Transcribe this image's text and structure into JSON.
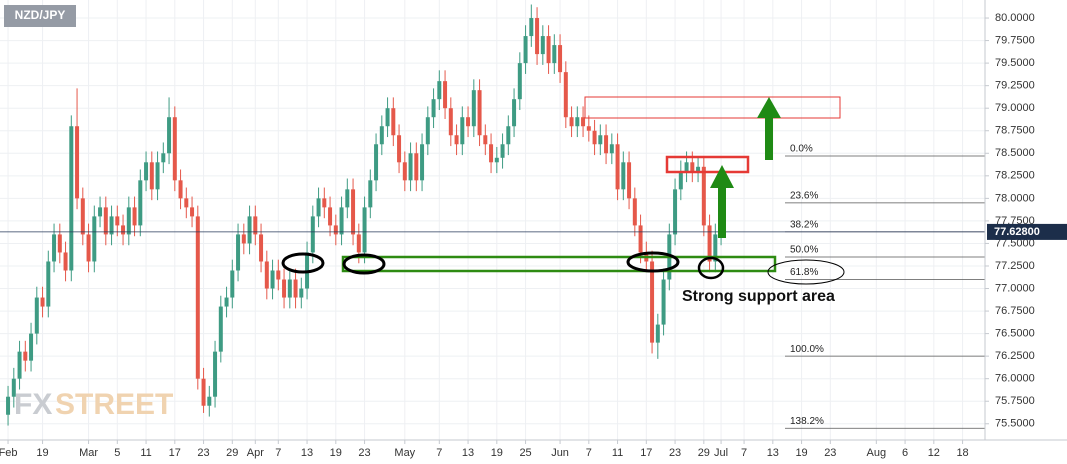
{
  "chart_data": {
    "type": "candlestick",
    "title": "NZD/JPY",
    "watermark": [
      "FX",
      "STREET"
    ],
    "up_color": "#3e9b83",
    "down_color": "#e5584a",
    "grid": true,
    "open": [
      75.6,
      75.8,
      76.0,
      76.3,
      76.2,
      76.5,
      76.9,
      76.8,
      77.3,
      77.6,
      77.4,
      77.2,
      78.8,
      78.0,
      77.6,
      77.3,
      77.8,
      77.9,
      77.6,
      77.8,
      77.7,
      77.6,
      77.9,
      77.7,
      78.2,
      78.4,
      78.1,
      78.4,
      78.5,
      78.9,
      78.2,
      78.0,
      77.9,
      77.8,
      76.0,
      75.7,
      75.8,
      76.3,
      76.8,
      76.9,
      77.2,
      77.6,
      77.5,
      77.8,
      77.6,
      77.3,
      77.0,
      77.2,
      77.1,
      76.9,
      77.1,
      76.9,
      77.0,
      77.4,
      77.8,
      78.0,
      77.9,
      77.7,
      77.6,
      77.9,
      78.1,
      77.6,
      77.4,
      77.9,
      78.2,
      78.6,
      78.8,
      79.0,
      78.7,
      78.4,
      78.2,
      78.5,
      78.2,
      78.6,
      78.9,
      79.1,
      79.3,
      79.0,
      78.7,
      78.6,
      78.9,
      78.8,
      79.2,
      78.7,
      78.6,
      78.4,
      78.45,
      78.6,
      78.8,
      79.1,
      79.5,
      79.8,
      80.0,
      79.6,
      79.8,
      79.5,
      79.7,
      79.4,
      78.9,
      78.8,
      78.9,
      78.8,
      78.75,
      78.6,
      78.7,
      78.5,
      78.6,
      78.1,
      78.4,
      78.0,
      77.7,
      77.4,
      77.3,
      76.4,
      76.6,
      77.1,
      77.6,
      78.1,
      78.3,
      78.4,
      78.3,
      78.35,
      77.7,
      77.3,
      77.6
    ],
    "high": [
      75.92,
      76.12,
      76.42,
      76.42,
      76.62,
      77.02,
      77.02,
      77.42,
      77.72,
      77.72,
      77.52,
      78.92,
      79.22,
      78.12,
      77.72,
      77.92,
      78.02,
      78.02,
      77.92,
      77.92,
      77.82,
      78.02,
      78.02,
      78.32,
      78.52,
      78.52,
      78.52,
      78.62,
      79.12,
      79.02,
      78.32,
      78.12,
      78.02,
      77.92,
      76.12,
      75.92,
      76.42,
      76.92,
      77.02,
      77.32,
      77.72,
      77.72,
      77.92,
      77.92,
      77.72,
      77.42,
      77.32,
      77.32,
      77.22,
      77.22,
      77.22,
      77.12,
      77.52,
      77.92,
      78.12,
      78.12,
      78.02,
      77.82,
      78.02,
      78.22,
      78.22,
      77.72,
      78.02,
      78.32,
      78.72,
      78.92,
      79.12,
      79.12,
      78.82,
      78.52,
      78.62,
      78.62,
      78.72,
      79.02,
      79.22,
      79.42,
      79.42,
      79.12,
      78.82,
      79.02,
      79.02,
      79.32,
      79.32,
      78.82,
      78.72,
      78.57,
      78.72,
      78.92,
      79.22,
      79.62,
      79.92,
      80.15,
      80.12,
      79.92,
      79.92,
      79.82,
      79.82,
      79.52,
      79.02,
      79.02,
      79.02,
      78.92,
      78.87,
      78.82,
      78.82,
      78.72,
      78.72,
      78.52,
      78.52,
      78.12,
      77.82,
      77.52,
      77.42,
      76.72,
      77.22,
      77.72,
      78.22,
      78.42,
      78.52,
      78.52,
      78.47,
      78.47,
      77.82,
      77.72,
      77.75
    ],
    "low": [
      75.48,
      75.68,
      75.88,
      76.08,
      76.08,
      76.38,
      76.68,
      76.68,
      77.18,
      77.28,
      77.08,
      77.08,
      77.88,
      77.48,
      77.18,
      77.18,
      77.68,
      77.48,
      77.48,
      77.58,
      77.48,
      77.48,
      77.58,
      77.58,
      78.08,
      77.98,
      77.98,
      78.28,
      78.38,
      78.08,
      77.88,
      77.78,
      77.68,
      75.88,
      75.62,
      75.58,
      75.68,
      76.18,
      76.68,
      76.78,
      77.08,
      77.38,
      77.38,
      77.48,
      77.18,
      76.88,
      76.88,
      76.98,
      76.78,
      76.78,
      76.78,
      76.78,
      76.88,
      77.28,
      77.68,
      77.78,
      77.58,
      77.48,
      77.48,
      77.78,
      77.48,
      77.28,
      77.28,
      77.78,
      78.08,
      78.48,
      78.68,
      78.58,
      78.28,
      78.08,
      78.08,
      78.08,
      78.08,
      78.48,
      78.78,
      78.98,
      78.88,
      78.58,
      78.48,
      78.48,
      78.68,
      78.68,
      78.58,
      78.48,
      78.28,
      78.28,
      78.33,
      78.48,
      78.68,
      78.98,
      79.38,
      79.68,
      79.48,
      79.48,
      79.38,
      79.38,
      79.28,
      78.78,
      78.68,
      78.68,
      78.68,
      78.63,
      78.48,
      78.48,
      78.38,
      78.38,
      77.98,
      77.98,
      77.88,
      77.58,
      77.28,
      77.18,
      76.28,
      76.22,
      76.48,
      76.98,
      77.48,
      77.98,
      78.18,
      78.18,
      78.18,
      77.58,
      77.18,
      77.18,
      77.48
    ],
    "close": [
      75.8,
      76.0,
      76.3,
      76.2,
      76.5,
      76.9,
      76.8,
      77.3,
      77.6,
      77.4,
      77.2,
      78.8,
      78.0,
      77.6,
      77.3,
      77.8,
      77.9,
      77.6,
      77.8,
      77.7,
      77.6,
      77.9,
      77.7,
      78.2,
      78.4,
      78.1,
      78.4,
      78.5,
      78.9,
      78.2,
      78.0,
      77.9,
      77.8,
      76.0,
      75.7,
      75.8,
      76.3,
      76.8,
      76.9,
      77.2,
      77.6,
      77.5,
      77.8,
      77.6,
      77.3,
      77.0,
      77.2,
      77.1,
      76.9,
      77.1,
      76.9,
      77.0,
      77.4,
      77.8,
      78.0,
      77.9,
      77.7,
      77.6,
      77.9,
      78.1,
      77.6,
      77.4,
      77.9,
      78.2,
      78.6,
      78.8,
      79.0,
      78.7,
      78.4,
      78.2,
      78.5,
      78.2,
      78.6,
      78.9,
      79.1,
      79.3,
      79.0,
      78.7,
      78.6,
      78.9,
      78.8,
      79.2,
      78.7,
      78.6,
      78.4,
      78.45,
      78.6,
      78.8,
      79.1,
      79.5,
      79.8,
      80.0,
      79.6,
      79.8,
      79.5,
      79.7,
      79.4,
      78.9,
      78.8,
      78.9,
      78.8,
      78.75,
      78.6,
      78.7,
      78.5,
      78.6,
      78.1,
      78.4,
      78.0,
      77.7,
      77.4,
      77.3,
      76.4,
      76.6,
      77.1,
      77.6,
      78.1,
      78.3,
      78.4,
      78.3,
      78.35,
      77.7,
      77.3,
      77.6,
      77.63
    ],
    "ylim": [
      75.32,
      80.2
    ],
    "yticks": [
      {
        "value": 75.5,
        "label": "75.5000"
      },
      {
        "value": 75.75,
        "label": "75.7500"
      },
      {
        "value": 76,
        "label": "76.0000"
      },
      {
        "value": 76.25,
        "label": "76.2500"
      },
      {
        "value": 76.5,
        "label": "76.5000"
      },
      {
        "value": 76.75,
        "label": "76.7500"
      },
      {
        "value": 77,
        "label": "77.0000"
      },
      {
        "value": 77.25,
        "label": "77.2500"
      },
      {
        "value": 77.5,
        "label": "77.5000"
      },
      {
        "value": 77.75,
        "label": "77.7500"
      },
      {
        "value": 78,
        "label": "78.0000"
      },
      {
        "value": 78.25,
        "label": "78.2500"
      },
      {
        "value": 78.5,
        "label": "78.5000"
      },
      {
        "value": 78.75,
        "label": "78.7500"
      },
      {
        "value": 79,
        "label": "79.0000"
      },
      {
        "value": 79.25,
        "label": "79.2500"
      },
      {
        "value": 79.5,
        "label": "79.5000"
      },
      {
        "value": 79.75,
        "label": "79.7500"
      },
      {
        "value": 80,
        "label": "80.0000"
      }
    ],
    "xlim": [
      -1.4,
      169.9
    ],
    "xticks": [
      {
        "value": 0,
        "label": "Feb"
      },
      {
        "value": 6,
        "label": "19"
      },
      {
        "value": 14,
        "label": "Mar"
      },
      {
        "value": 19,
        "label": "5"
      },
      {
        "value": 24,
        "label": "11"
      },
      {
        "value": 29,
        "label": "17"
      },
      {
        "value": 34,
        "label": "23"
      },
      {
        "value": 39,
        "label": "29"
      },
      {
        "value": 43,
        "label": "Apr"
      },
      {
        "value": 47,
        "label": "7"
      },
      {
        "value": 52,
        "label": "13"
      },
      {
        "value": 57,
        "label": "19"
      },
      {
        "value": 62,
        "label": "23"
      },
      {
        "value": 69,
        "label": "May"
      },
      {
        "value": 75,
        "label": "7"
      },
      {
        "value": 80,
        "label": "13"
      },
      {
        "value": 85,
        "label": "19"
      },
      {
        "value": 90,
        "label": "25"
      },
      {
        "value": 96,
        "label": "Jun"
      },
      {
        "value": 101,
        "label": "7"
      },
      {
        "value": 106,
        "label": "11"
      },
      {
        "value": 111,
        "label": "17"
      },
      {
        "value": 116,
        "label": "23"
      },
      {
        "value": 121,
        "label": "29"
      },
      {
        "value": 124,
        "label": "Jul"
      },
      {
        "value": 128,
        "label": "7"
      },
      {
        "value": 133,
        "label": "13"
      },
      {
        "value": 138,
        "label": "19"
      },
      {
        "value": 143,
        "label": "23"
      },
      {
        "value": 151,
        "label": "Aug"
      },
      {
        "value": 156,
        "label": "6"
      },
      {
        "value": 161,
        "label": "12"
      },
      {
        "value": 166,
        "label": "18"
      }
    ],
    "last_price": {
      "value": 77.628,
      "label": "77.62800"
    },
    "fib_levels": [
      {
        "value": 78.47,
        "label": "0.0%"
      },
      {
        "value": 77.95,
        "label": "23.6%"
      },
      {
        "value": 77.63,
        "label": "38.2%"
      },
      {
        "value": 77.35,
        "label": "50.0%"
      },
      {
        "value": 77.1,
        "label": "61.8%"
      },
      {
        "value": 76.25,
        "label": "100.0%"
      },
      {
        "value": 75.45,
        "label": "138.2%"
      }
    ],
    "annotation": "Strong support area"
  }
}
